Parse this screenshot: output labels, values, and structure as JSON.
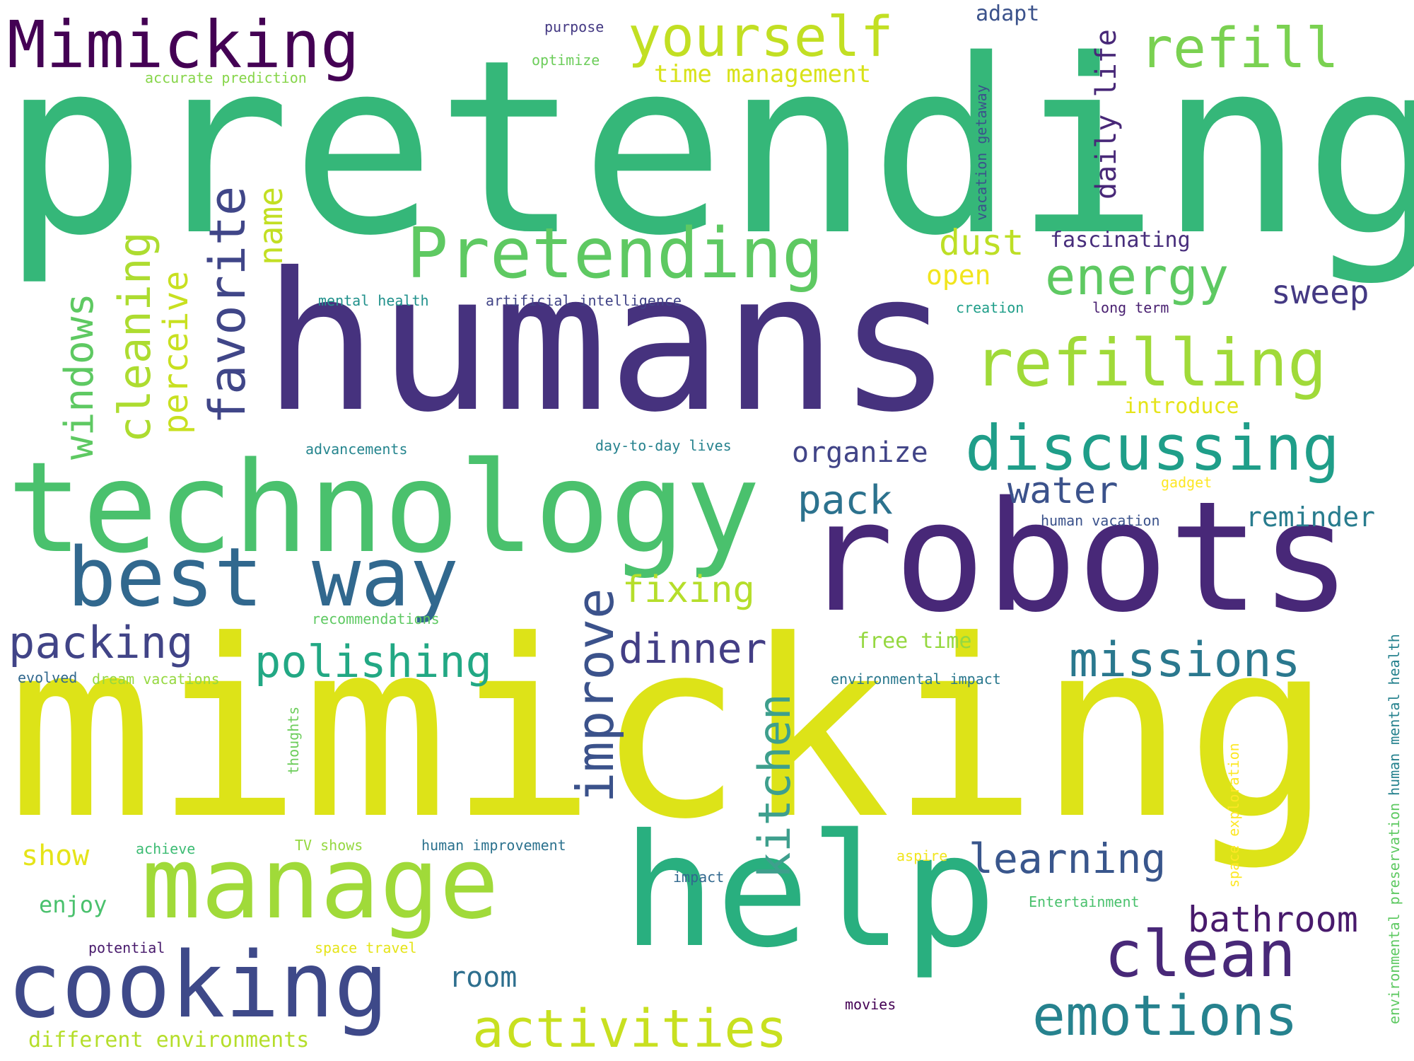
{
  "words": [
    {
      "text": "pretending",
      "color": "#35b779",
      "weight": 1.0
    },
    {
      "text": "humans",
      "color": "#46327e",
      "weight": 0.78
    },
    {
      "text": "mimicking",
      "color": "#dde318",
      "weight": 1.0
    },
    {
      "text": "technology",
      "color": "#4ac16d",
      "weight": 0.6
    },
    {
      "text": "robots",
      "color": "#482878",
      "weight": 0.62
    },
    {
      "text": "help",
      "color": "#29af7f",
      "weight": 0.55
    },
    {
      "text": "manage",
      "color": "#a0da39",
      "weight": 0.45
    },
    {
      "text": "cooking",
      "color": "#3e4989",
      "weight": 0.42
    },
    {
      "text": "best way",
      "color": "#31688e",
      "weight": 0.38
    },
    {
      "text": "Pretending",
      "color": "#5ec962",
      "weight": 0.33
    },
    {
      "text": "Mimicking",
      "color": "#440154",
      "weight": 0.3
    },
    {
      "text": "refilling",
      "color": "#a0da39",
      "weight": 0.3
    },
    {
      "text": "discussing",
      "color": "#1f9e89",
      "weight": 0.29
    },
    {
      "text": "clean",
      "color": "#482878",
      "weight": 0.29
    },
    {
      "text": "emotions",
      "color": "#26828e",
      "weight": 0.26
    },
    {
      "text": "yourself",
      "color": "#c2df23",
      "weight": 0.26
    },
    {
      "text": "refill",
      "color": "#7ad151",
      "weight": 0.26
    },
    {
      "text": "energy",
      "color": "#5ec962",
      "weight": 0.23
    },
    {
      "text": "activities",
      "color": "#c8e020",
      "weight": 0.24
    },
    {
      "text": "missions",
      "color": "#2a788e",
      "weight": 0.2
    },
    {
      "text": "polishing",
      "color": "#22a884",
      "weight": 0.18
    },
    {
      "text": "packing",
      "color": "#414487",
      "weight": 0.18
    },
    {
      "text": "learning",
      "color": "#39568c",
      "weight": 0.16
    },
    {
      "text": "dinner",
      "color": "#433e85",
      "weight": 0.16
    },
    {
      "text": "bathroom",
      "color": "#481a6c",
      "weight": 0.14
    },
    {
      "text": "pack",
      "color": "#2c728e",
      "weight": 0.14
    },
    {
      "text": "water",
      "color": "#3b528b",
      "weight": 0.14
    },
    {
      "text": "fixing",
      "color": "#b5de2b",
      "weight": 0.14
    },
    {
      "text": "dust",
      "color": "#bddf26",
      "weight": 0.13
    },
    {
      "text": "sweep",
      "color": "#443983",
      "weight": 0.12
    },
    {
      "text": "organize",
      "color": "#414487",
      "weight": 0.11
    },
    {
      "text": "reminder",
      "color": "#287c8e",
      "weight": 0.11
    },
    {
      "text": "room",
      "color": "#2e6f8e",
      "weight": 0.11
    },
    {
      "text": "open",
      "color": "#f1e51d",
      "weight": 0.1
    },
    {
      "text": "show",
      "color": "#e5e419",
      "weight": 0.1
    },
    {
      "text": "enjoy",
      "color": "#4ac16d",
      "weight": 0.09
    },
    {
      "text": "time management",
      "color": "#d8e219",
      "weight": 0.09
    },
    {
      "text": "fascinating",
      "color": "#472d7b",
      "weight": 0.08
    },
    {
      "text": "free time",
      "color": "#95d840",
      "weight": 0.08
    },
    {
      "text": "introduce",
      "color": "#e5e419",
      "weight": 0.08
    },
    {
      "text": "adapt",
      "color": "#3b528b",
      "weight": 0.08
    },
    {
      "text": "purpose",
      "color": "#443983",
      "weight": 0.05
    },
    {
      "text": "optimize",
      "color": "#6ccd5a",
      "weight": 0.05
    },
    {
      "text": "accurate prediction",
      "color": "#86d549",
      "weight": 0.05
    },
    {
      "text": "mental health",
      "color": "#21918c",
      "weight": 0.05
    },
    {
      "text": "artificial intelligence",
      "color": "#414487",
      "weight": 0.05
    },
    {
      "text": "creation",
      "color": "#1f9e89",
      "weight": 0.05
    },
    {
      "text": "long term",
      "color": "#481f70",
      "weight": 0.05
    },
    {
      "text": "advancements",
      "color": "#25858e",
      "weight": 0.05
    },
    {
      "text": "day-to-day lives",
      "color": "#26828e",
      "weight": 0.05
    },
    {
      "text": "gadget",
      "color": "#fde725",
      "weight": 0.05
    },
    {
      "text": "human vacation",
      "color": "#3b528b",
      "weight": 0.05
    },
    {
      "text": "recommendations",
      "color": "#5ec962",
      "weight": 0.05
    },
    {
      "text": "evolved",
      "color": "#31688e",
      "weight": 0.05
    },
    {
      "text": "dream vacations",
      "color": "#95d840",
      "weight": 0.05
    },
    {
      "text": "environmental impact",
      "color": "#2a788e",
      "weight": 0.05
    },
    {
      "text": "achieve",
      "color": "#3dbc74",
      "weight": 0.05
    },
    {
      "text": "TV shows",
      "color": "#95d840",
      "weight": 0.05
    },
    {
      "text": "human improvement",
      "color": "#2c728e",
      "weight": 0.05
    },
    {
      "text": "aspire",
      "color": "#f1e51d",
      "weight": 0.05
    },
    {
      "text": "impact",
      "color": "#31688e",
      "weight": 0.05
    },
    {
      "text": "Entertainment",
      "color": "#4ac16d",
      "weight": 0.05
    },
    {
      "text": "potential",
      "color": "#481a6c",
      "weight": 0.05
    },
    {
      "text": "space travel",
      "color": "#e5e419",
      "weight": 0.05
    },
    {
      "text": "movies",
      "color": "#440154",
      "weight": 0.05
    },
    {
      "text": "different environments",
      "color": "#b5de2b",
      "weight": 0.06
    },
    {
      "text": "cleaning",
      "color": "#addc30",
      "weight": 0.14
    },
    {
      "text": "windows",
      "color": "#5ec962",
      "weight": 0.14
    },
    {
      "text": "perceive",
      "color": "#c8e020",
      "weight": 0.12
    },
    {
      "text": "favorite",
      "color": "#404688",
      "weight": 0.16
    },
    {
      "text": "name",
      "color": "#c2df23",
      "weight": 0.11
    },
    {
      "text": "improve",
      "color": "#3b528b",
      "weight": 0.17
    },
    {
      "text": "kitchen",
      "color": "#3e9f8d",
      "weight": 0.14
    },
    {
      "text": "daily life",
      "color": "#482878",
      "weight": 0.09
    },
    {
      "text": "vacation getaway",
      "color": "#3b528b",
      "weight": 0.05
    },
    {
      "text": "thoughts",
      "color": "#6ccd5a",
      "weight": 0.05
    },
    {
      "text": "space exploration",
      "color": "#fde725",
      "weight": 0.05
    },
    {
      "text": "human mental health",
      "color": "#26828e",
      "weight": 0.05
    },
    {
      "text": "environmental preservation",
      "color": "#5ec962",
      "weight": 0.05
    }
  ]
}
